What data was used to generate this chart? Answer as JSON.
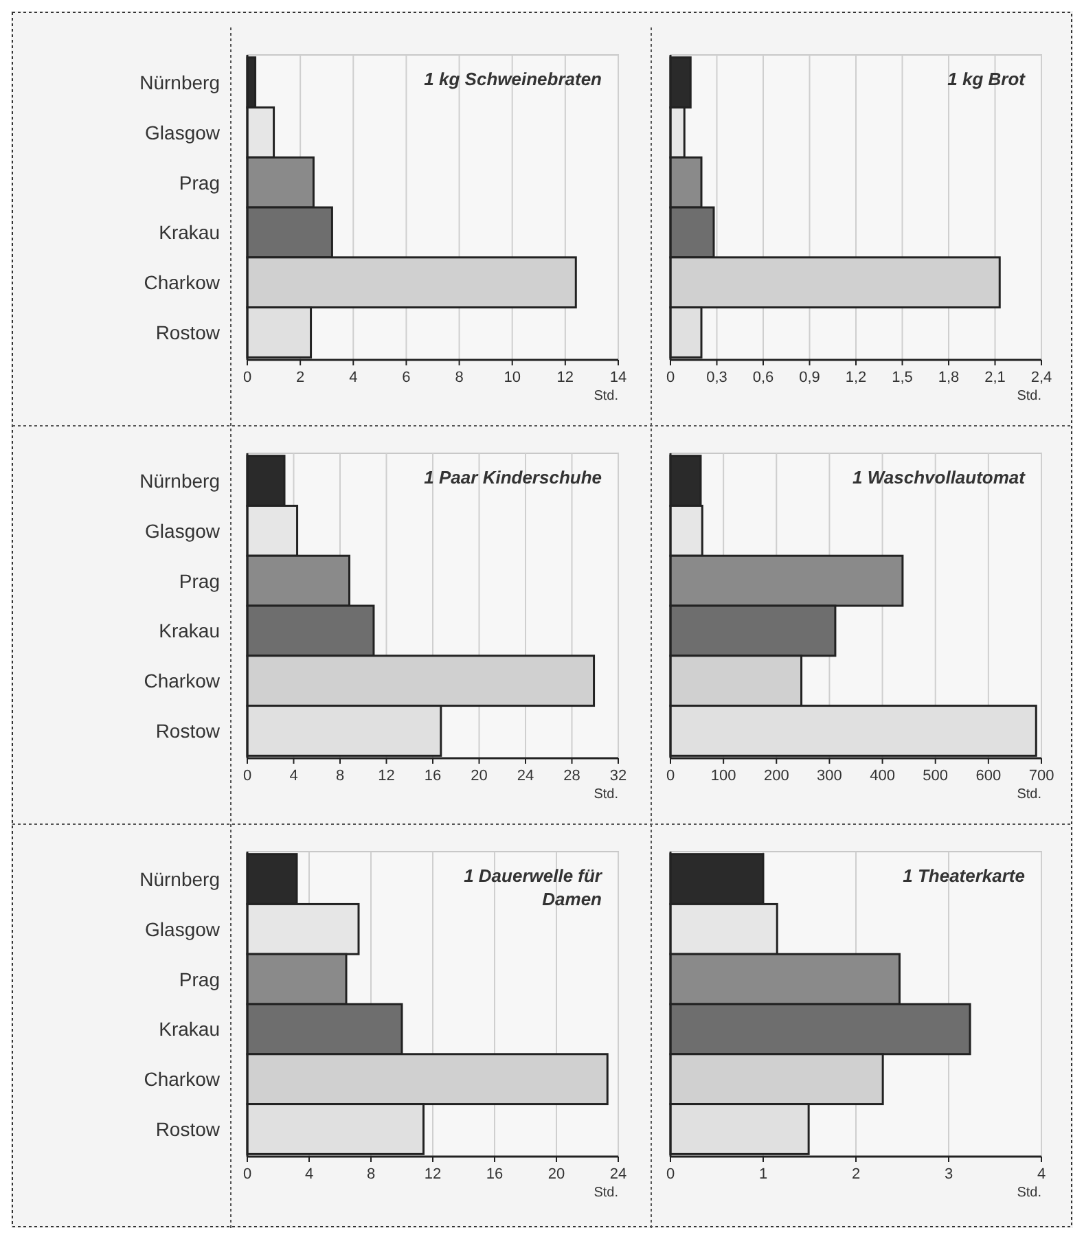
{
  "chart_data": [
    {
      "type": "bar",
      "orientation": "horizontal",
      "title": "1 kg Schweinebraten",
      "xlabel": "Std.",
      "categories": [
        "Nürnberg",
        "Glasgow",
        "Prag",
        "Krakau",
        "Charkow",
        "Rostow"
      ],
      "values": [
        0.3,
        1.0,
        2.5,
        3.2,
        12.4,
        2.4
      ],
      "colors": [
        "#2a2a2a",
        "#e6e6e6",
        "#8a8a8a",
        "#6e6e6e",
        "#d0d0d0",
        "#e0e0e0"
      ],
      "xlim": [
        0,
        14
      ],
      "xticks": [
        0,
        2,
        4,
        6,
        8,
        10,
        12,
        14
      ],
      "grid": "x"
    },
    {
      "type": "bar",
      "orientation": "horizontal",
      "title": "1 kg Brot",
      "xlabel": "Std.",
      "categories": [
        null,
        null,
        null,
        null,
        null,
        null
      ],
      "values": [
        0.13,
        0.09,
        0.2,
        0.28,
        2.13,
        0.2
      ],
      "colors": [
        "#2a2a2a",
        "#e6e6e6",
        "#8a8a8a",
        "#6e6e6e",
        "#d0d0d0",
        "#e0e0e0"
      ],
      "xlim": [
        0,
        2.4
      ],
      "xticks": [
        0,
        {
          "value": 0.3,
          "label": "0,3"
        },
        {
          "value": 0.6,
          "label": "0,6"
        },
        {
          "value": 0.9,
          "label": "0,9"
        },
        {
          "value": 1.2,
          "label": "1,2"
        },
        {
          "value": 1.5,
          "label": "1,5"
        },
        {
          "value": 1.8,
          "label": "1,8"
        },
        {
          "value": 2.1,
          "label": "2,1"
        },
        {
          "value": 2.4,
          "label": "2,4"
        }
      ],
      "grid": "x"
    },
    {
      "type": "bar",
      "orientation": "horizontal",
      "title": "1 Paar Kinderschuhe",
      "xlabel": "Std.",
      "categories": [
        "Nürnberg",
        "Glasgow",
        "Prag",
        "Krakau",
        "Charkow",
        "Rostow"
      ],
      "values": [
        3.2,
        4.3,
        8.8,
        10.9,
        29.9,
        16.7
      ],
      "colors": [
        "#2a2a2a",
        "#e6e6e6",
        "#8a8a8a",
        "#6e6e6e",
        "#d0d0d0",
        "#e0e0e0"
      ],
      "xlim": [
        0,
        32
      ],
      "xticks": [
        0,
        4,
        8,
        12,
        16,
        20,
        24,
        28,
        32
      ],
      "grid": "x"
    },
    {
      "type": "bar",
      "orientation": "horizontal",
      "title": "1 Waschvollautomat",
      "xlabel": "Std.",
      "categories": [
        null,
        null,
        null,
        null,
        null,
        null
      ],
      "values": [
        57,
        60,
        438,
        311,
        247,
        690
      ],
      "colors": [
        "#2a2a2a",
        "#e6e6e6",
        "#8a8a8a",
        "#6e6e6e",
        "#d0d0d0",
        "#e0e0e0"
      ],
      "xlim": [
        0,
        700
      ],
      "xticks": [
        0,
        100,
        200,
        300,
        400,
        500,
        600,
        700
      ],
      "grid": "x"
    },
    {
      "type": "bar",
      "orientation": "horizontal",
      "title": "1 Dauerwelle für Damen",
      "xlabel": "Std.",
      "categories": [
        "Nürnberg",
        "Glasgow",
        "Prag",
        "Krakau",
        "Charkow",
        "Rostow"
      ],
      "values": [
        3.2,
        7.2,
        6.4,
        10.0,
        23.3,
        11.4
      ],
      "colors": [
        "#2a2a2a",
        "#e6e6e6",
        "#8a8a8a",
        "#6e6e6e",
        "#d0d0d0",
        "#e0e0e0"
      ],
      "xlim": [
        0,
        24
      ],
      "xticks": [
        0,
        4,
        8,
        12,
        16,
        20,
        24
      ],
      "grid": "x"
    },
    {
      "type": "bar",
      "orientation": "horizontal",
      "title": "1 Theaterkarte",
      "xlabel": "Std.",
      "categories": [
        null,
        null,
        null,
        null,
        null,
        null
      ],
      "values": [
        1.0,
        1.15,
        2.47,
        3.23,
        2.29,
        1.49
      ],
      "colors": [
        "#2a2a2a",
        "#e6e6e6",
        "#8a8a8a",
        "#6e6e6e",
        "#d0d0d0",
        "#e0e0e0"
      ],
      "xlim": [
        0,
        4
      ],
      "xticks": [
        0,
        1,
        2,
        3,
        4
      ],
      "grid": "x"
    }
  ]
}
